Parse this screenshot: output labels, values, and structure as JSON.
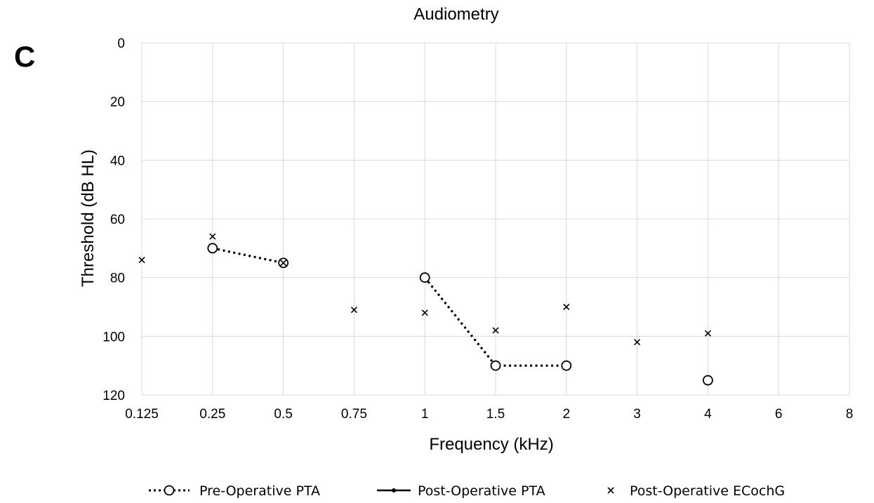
{
  "panel_label": "C",
  "chart_data": {
    "type": "line",
    "title": "Audiometry",
    "xlabel": "Frequency (kHz)",
    "ylabel": "Threshold (dB HL)",
    "categories": [
      "0.125",
      "0.25",
      "0.5",
      "0.75",
      "1",
      "1.5",
      "2",
      "3",
      "4",
      "6",
      "8"
    ],
    "ylim": [
      0,
      120
    ],
    "y_ticks": [
      "0",
      "20",
      "40",
      "60",
      "80",
      "100",
      "120"
    ],
    "y_inverted": true,
    "grid": true,
    "legend_position": "bottom",
    "series": [
      {
        "name": "Pre-Operative PTA",
        "style": "dotted-line-open-circle",
        "points": [
          {
            "x": "0.25",
            "y": 70
          },
          {
            "x": "0.5",
            "y": 75
          },
          {
            "x": "1",
            "y": 80
          },
          {
            "x": "1.5",
            "y": 110
          },
          {
            "x": "2",
            "y": 110
          },
          {
            "x": "4",
            "y": 115
          }
        ],
        "connected_segments": [
          [
            0,
            1
          ],
          [
            2,
            3,
            4
          ]
        ]
      },
      {
        "name": "Post-Operative PTA",
        "style": "solid-line-dot",
        "points": []
      },
      {
        "name": "Post-Operative ECochG",
        "style": "cross-marker",
        "points": [
          {
            "x": "0.125",
            "y": 74
          },
          {
            "x": "0.25",
            "y": 66
          },
          {
            "x": "0.5",
            "y": 75
          },
          {
            "x": "0.75",
            "y": 91
          },
          {
            "x": "1",
            "y": 92
          },
          {
            "x": "1.5",
            "y": 98
          },
          {
            "x": "2",
            "y": 90
          },
          {
            "x": "3",
            "y": 102
          },
          {
            "x": "4",
            "y": 99
          }
        ]
      }
    ]
  }
}
